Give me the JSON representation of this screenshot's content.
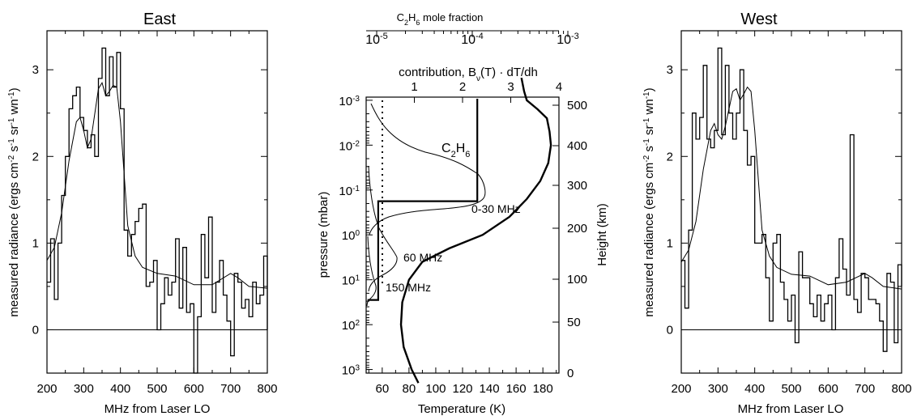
{
  "panels": [
    {
      "id": "east",
      "title": "East",
      "xlabel": "MHz from Laser LO",
      "ylabel_parts": [
        "measured radiance (ergs cm",
        "-2",
        " s",
        "-1",
        " sr",
        "-1",
        " wn",
        "-1",
        ")"
      ],
      "xticks": [
        200,
        300,
        400,
        500,
        600,
        700,
        800
      ],
      "yticks": [
        0,
        1,
        2,
        3
      ],
      "xlim": [
        200,
        800
      ],
      "ylim": [
        -0.5,
        3.45
      ]
    },
    {
      "id": "west",
      "title": "West",
      "xlabel": "MHz from Laser LO",
      "ylabel_parts": [
        "measured radiance (ergs cm",
        "-2",
        " s",
        "-1",
        " sr",
        "-1",
        " wn",
        "-1",
        ")"
      ],
      "xticks": [
        200,
        300,
        400,
        500,
        600,
        700,
        800
      ],
      "yticks": [
        0,
        1,
        2,
        3
      ],
      "xlim": [
        200,
        800
      ],
      "ylim": [
        -0.5,
        3.45
      ]
    }
  ],
  "middle": {
    "top_title_parts": [
      "C",
      "2",
      "H",
      "6",
      " mole fraction"
    ],
    "top_ticks": [
      {
        "base": "10",
        "exp": "-5",
        "value": 1e-05
      },
      {
        "base": "10",
        "exp": "-4",
        "value": 0.0001
      },
      {
        "base": "10",
        "exp": "-3",
        "value": 0.001
      }
    ],
    "contrib_title_parts": [
      "contribution, B",
      "ν",
      "(T) · dT/dh"
    ],
    "contrib_ticks": [
      1,
      2,
      3,
      4
    ],
    "xlabel": "Temperature (K)",
    "xticks": [
      60,
      80,
      100,
      120,
      140,
      160,
      180
    ],
    "xlim": [
      48,
      192
    ],
    "ylabel": "pressure (mbar)",
    "yticks": [
      {
        "base": "10",
        "exp": "-3"
      },
      {
        "base": "10",
        "exp": "-2"
      },
      {
        "base": "10",
        "exp": "-1"
      },
      {
        "base": "10",
        "exp": "0"
      },
      {
        "base": "10",
        "exp": "1"
      },
      {
        "base": "10",
        "exp": "2"
      },
      {
        "base": "10",
        "exp": "3"
      }
    ],
    "right_ylabel": "Height (km)",
    "right_ticks": [
      0,
      50,
      100,
      200,
      300,
      400,
      500
    ],
    "annotations": {
      "c2h6_parts": [
        "C",
        "2",
        "H",
        "6"
      ],
      "mhz_0_30": "0-30 MHz",
      "mhz_60": "60 MHz",
      "mhz_150": "150 MHz"
    }
  },
  "chart_data": [
    {
      "type": "line",
      "title": "East",
      "xlabel": "MHz from Laser LO",
      "ylabel": "measured radiance (ergs cm-2 s-1 sr-1 wn-1)",
      "xlim": [
        200,
        800
      ],
      "ylim": [
        -0.5,
        3.45
      ],
      "series": [
        {
          "style": "step",
          "x": [
            200,
            210,
            220,
            230,
            240,
            250,
            260,
            270,
            280,
            290,
            300,
            310,
            320,
            330,
            340,
            350,
            360,
            370,
            380,
            390,
            400,
            410,
            420,
            430,
            440,
            450,
            460,
            470,
            480,
            490,
            500,
            510,
            520,
            530,
            540,
            550,
            560,
            570,
            580,
            590,
            600,
            610,
            620,
            630,
            640,
            650,
            660,
            670,
            680,
            690,
            700,
            710,
            720,
            730,
            740,
            750,
            760,
            770,
            780,
            790,
            800
          ],
          "y": [
            0.55,
            1.05,
            0.35,
            1.0,
            1.55,
            2.0,
            2.55,
            2.7,
            2.8,
            2.45,
            2.3,
            2.1,
            2.25,
            2.0,
            2.9,
            3.25,
            2.7,
            3.15,
            2.8,
            3.2,
            2.55,
            1.15,
            0.85,
            1.1,
            1.25,
            1.4,
            1.45,
            0.5,
            0.55,
            0.8,
            0.0,
            0.3,
            0.6,
            0.4,
            0.55,
            1.05,
            0.25,
            0.95,
            0.2,
            0.3,
            -0.5,
            0.15,
            1.1,
            0.6,
            1.3,
            0.2,
            0.55,
            0.8,
            0.4,
            0.1,
            -0.3,
            0.65,
            0.55,
            0.25,
            0.35,
            0.15,
            0.55,
            0.3,
            0.4,
            0.85,
            0.0
          ]
        },
        {
          "style": "line",
          "x": [
            200,
            220,
            240,
            260,
            280,
            290,
            300,
            310,
            320,
            340,
            350,
            360,
            370,
            380,
            390,
            400,
            420,
            440,
            460,
            500,
            550,
            600,
            650,
            700,
            720,
            750,
            800
          ],
          "y": [
            0.8,
            0.95,
            1.35,
            1.95,
            2.4,
            2.45,
            2.3,
            2.1,
            2.2,
            2.78,
            2.85,
            2.7,
            2.75,
            2.82,
            2.8,
            2.4,
            1.2,
            0.85,
            0.72,
            0.65,
            0.62,
            0.52,
            0.52,
            0.65,
            0.6,
            0.5,
            0.48
          ]
        }
      ]
    },
    {
      "type": "line",
      "xlabel": "Temperature (K)",
      "ylabel": "pressure (mbar)",
      "xlim": [
        48,
        192
      ],
      "ylog": true,
      "series": [
        {
          "style": "thick",
          "x": [
            87,
            82,
            76,
            74,
            75,
            80,
            90,
            110,
            135,
            155,
            168,
            178,
            184,
            186,
            185,
            183,
            176,
            168,
            166,
            164
          ],
          "y": [
            3.3,
            3.0,
            2.5,
            2.0,
            1.5,
            1.0,
            0.6,
            0.3,
            0.0,
            -0.4,
            -0.8,
            -1.2,
            -1.6,
            -2.0,
            -2.3,
            -2.6,
            -2.8,
            -3.0,
            -3.2,
            -3.5
          ]
        },
        {
          "style": "c2h6-profile",
          "x": [
            49,
            57,
            57,
            131,
            131
          ],
          "y": [
            1.45,
            1.45,
            -0.75,
            -0.75,
            -3.5
          ]
        }
      ]
    },
    {
      "type": "line",
      "title": "West",
      "xlabel": "MHz from Laser LO",
      "ylabel": "measured radiance (ergs cm-2 s-1 sr-1 wn-1)",
      "xlim": [
        200,
        800
      ],
      "ylim": [
        -0.5,
        3.45
      ],
      "series": [
        {
          "style": "step",
          "x": [
            200,
            210,
            220,
            230,
            240,
            250,
            260,
            270,
            280,
            290,
            300,
            310,
            320,
            330,
            340,
            350,
            360,
            370,
            380,
            390,
            400,
            410,
            420,
            430,
            440,
            450,
            460,
            470,
            480,
            490,
            500,
            510,
            520,
            530,
            540,
            550,
            560,
            570,
            580,
            590,
            600,
            610,
            620,
            630,
            640,
            650,
            660,
            670,
            680,
            690,
            700,
            710,
            720,
            730,
            740,
            750,
            760,
            770,
            780,
            790,
            800
          ],
          "y": [
            0.8,
            0.25,
            1.15,
            2.5,
            2.2,
            2.45,
            3.05,
            2.2,
            2.1,
            2.3,
            3.25,
            2.25,
            3.05,
            2.5,
            2.2,
            2.5,
            3.0,
            2.3,
            1.9,
            2.0,
            1.0,
            1.0,
            1.1,
            0.6,
            0.1,
            1.0,
            1.1,
            0.55,
            0.35,
            0.1,
            0.4,
            -0.15,
            0.9,
            0.6,
            0.6,
            0.3,
            0.15,
            0.4,
            0.1,
            0.3,
            0.4,
            0.0,
            0.6,
            1.05,
            0.7,
            0.4,
            2.25,
            0.35,
            0.2,
            0.65,
            0.6,
            0.35,
            0.35,
            0.3,
            0.1,
            -0.25,
            0.65,
            0.55,
            -0.15,
            0.75,
            0.5
          ]
        },
        {
          "style": "line",
          "x": [
            200,
            220,
            240,
            260,
            280,
            290,
            300,
            310,
            320,
            340,
            350,
            360,
            370,
            380,
            390,
            400,
            420,
            440,
            460,
            500,
            550,
            600,
            650,
            700,
            720,
            750,
            800
          ],
          "y": [
            0.78,
            0.92,
            1.25,
            1.85,
            2.3,
            2.38,
            2.25,
            2.2,
            2.35,
            2.75,
            2.78,
            2.65,
            2.72,
            2.8,
            2.75,
            2.3,
            1.15,
            0.85,
            0.72,
            0.64,
            0.62,
            0.52,
            0.55,
            0.65,
            0.6,
            0.5,
            0.47
          ]
        }
      ]
    }
  ]
}
